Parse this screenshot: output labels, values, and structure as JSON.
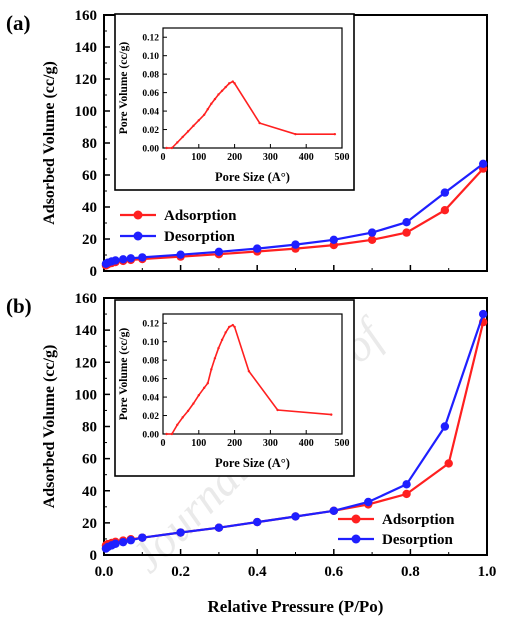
{
  "watermark": "Journal Pre-proof",
  "colors": {
    "adsorption": "#ff2020",
    "desorption": "#1f1fff",
    "inset_line": "#ff2020",
    "axis": "#000000"
  },
  "chart_data": [
    {
      "panel_label": "(a)",
      "type": "line",
      "xlabel": "",
      "ylabel": "Adsorbed Volume (cc/g)",
      "xlim": [
        0,
        1.0
      ],
      "ylim": [
        0,
        160
      ],
      "yticks": [
        "0",
        "20",
        "40",
        "60",
        "80",
        "100",
        "120",
        "140",
        "160"
      ],
      "xticks": [],
      "legend_position": "middle-left",
      "series": [
        {
          "name": "Adsorption",
          "color": "#ff2020",
          "x": [
            0.005,
            0.01,
            0.02,
            0.03,
            0.05,
            0.07,
            0.1,
            0.2,
            0.3,
            0.4,
            0.5,
            0.6,
            0.7,
            0.79,
            0.89,
            0.99
          ],
          "y": [
            3.5,
            4.2,
            5.0,
            5.6,
            6.3,
            6.9,
            7.5,
            9.0,
            10.5,
            12.2,
            14.0,
            16.2,
            19.5,
            24.0,
            38.0,
            64.0
          ]
        },
        {
          "name": "Desorption",
          "color": "#1f1fff",
          "x": [
            0.005,
            0.01,
            0.02,
            0.03,
            0.05,
            0.07,
            0.1,
            0.2,
            0.3,
            0.4,
            0.5,
            0.6,
            0.7,
            0.79,
            0.89,
            0.99
          ],
          "y": [
            4.5,
            5.2,
            6.0,
            6.6,
            7.3,
            7.9,
            8.5,
            10.2,
            12.0,
            14.0,
            16.5,
            19.5,
            24.0,
            30.5,
            49.0,
            67.0
          ]
        }
      ],
      "inset": {
        "type": "line",
        "xlabel": "Pore Size (A°)",
        "ylabel": "Pore Volume (cc/g)",
        "xlim": [
          0,
          500
        ],
        "ylim": [
          0,
          0.13
        ],
        "xticks": [
          "0",
          "100",
          "200",
          "300",
          "400",
          "500"
        ],
        "yticks": [
          "0.00",
          "0.02",
          "0.04",
          "0.06",
          "0.08",
          "0.10",
          "0.12"
        ],
        "x": [
          10,
          25,
          40,
          55,
          70,
          85,
          100,
          115,
          125,
          135,
          145,
          155,
          165,
          175,
          185,
          195,
          200,
          270,
          370,
          480
        ],
        "y": [
          0.0,
          0.0,
          0.006,
          0.012,
          0.018,
          0.024,
          0.03,
          0.036,
          0.042,
          0.048,
          0.053,
          0.058,
          0.062,
          0.066,
          0.07,
          0.072,
          0.07,
          0.027,
          0.015,
          0.015
        ]
      }
    },
    {
      "panel_label": "(b)",
      "type": "line",
      "xlabel": "Relative Pressure (P/Po)",
      "ylabel": "Adsorbed Volume (cc/g)",
      "xlim": [
        0,
        1.0
      ],
      "ylim": [
        0,
        160
      ],
      "yticks": [
        "0",
        "20",
        "40",
        "60",
        "80",
        "100",
        "120",
        "140",
        "160"
      ],
      "xticks": [
        "0.0",
        "0.2",
        "0.4",
        "0.6",
        "0.8",
        "1.0"
      ],
      "legend_position": "bottom-right",
      "series": [
        {
          "name": "Adsorption",
          "color": "#ff2020",
          "x": [
            0.005,
            0.01,
            0.02,
            0.03,
            0.05,
            0.07,
            0.1,
            0.2,
            0.3,
            0.4,
            0.5,
            0.6,
            0.69,
            0.79,
            0.9,
            0.99
          ],
          "y": [
            6.0,
            6.8,
            7.5,
            8.2,
            9.0,
            9.8,
            10.8,
            14.0,
            17.0,
            20.5,
            24.0,
            27.5,
            31.5,
            38.0,
            57.0,
            145.0
          ]
        },
        {
          "name": "Desorption",
          "color": "#1f1fff",
          "x": [
            0.005,
            0.01,
            0.02,
            0.03,
            0.05,
            0.07,
            0.1,
            0.2,
            0.3,
            0.4,
            0.5,
            0.6,
            0.69,
            0.79,
            0.89,
            0.99
          ],
          "y": [
            4.0,
            5.0,
            6.0,
            7.0,
            8.0,
            9.2,
            10.8,
            14.0,
            17.0,
            20.5,
            24.0,
            27.5,
            33.0,
            44.0,
            80.0,
            150.0
          ]
        }
      ],
      "inset": {
        "type": "line",
        "xlabel": "Pore Size (A°)",
        "ylabel": "Pore Volume (cc/g)",
        "xlim": [
          0,
          500
        ],
        "ylim": [
          0,
          0.13
        ],
        "xticks": [
          "0",
          "100",
          "200",
          "300",
          "400",
          "500"
        ],
        "yticks": [
          "0.00",
          "0.02",
          "0.04",
          "0.06",
          "0.08",
          "0.10",
          "0.12"
        ],
        "x": [
          10,
          25,
          40,
          55,
          70,
          85,
          100,
          115,
          125,
          135,
          145,
          155,
          165,
          175,
          185,
          195,
          200,
          240,
          320,
          470
        ],
        "y": [
          0.0,
          0.0,
          0.01,
          0.018,
          0.025,
          0.033,
          0.042,
          0.05,
          0.055,
          0.07,
          0.082,
          0.093,
          0.102,
          0.11,
          0.116,
          0.118,
          0.116,
          0.068,
          0.026,
          0.021
        ]
      }
    }
  ]
}
